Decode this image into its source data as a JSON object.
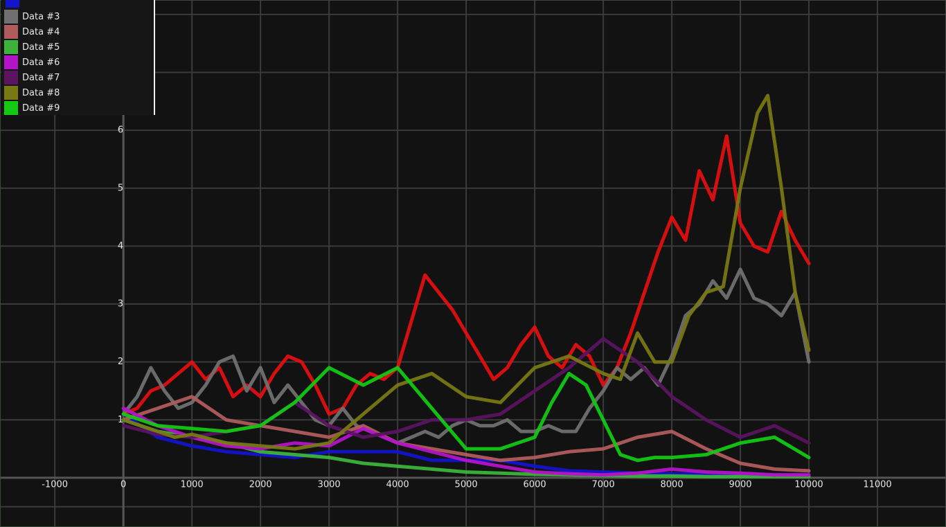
{
  "chart_data": {
    "type": "line",
    "title": "",
    "xlabel": "",
    "ylabel": "",
    "xlim": [
      -1800,
      12000
    ],
    "ylim": [
      -0.85,
      8.25
    ],
    "x_ticks": [
      -1000,
      0,
      1000,
      2000,
      3000,
      4000,
      5000,
      6000,
      7000,
      8000,
      9000,
      10000,
      11000
    ],
    "x_tick_labels": [
      "-1000",
      "0",
      "1000",
      "2000",
      "3000",
      "4000",
      "5000",
      "6000",
      "7000",
      "8000",
      "9000",
      "10000",
      "11000"
    ],
    "y_ticks": [
      1,
      2,
      3,
      4,
      5,
      6
    ],
    "y_tick_labels": [
      "1",
      "2",
      "3",
      "4",
      "5",
      "6"
    ],
    "grid": true,
    "legend_position": "top-left",
    "background_color": "#121212",
    "grid_color": "#3a3a3a",
    "axis_color": "#555555",
    "legend_top_swatch_color": "#1414cc",
    "series": [
      {
        "name": "",
        "color": "#1414cc",
        "x": [
          0,
          500,
          1000,
          1500,
          2000,
          2500,
          3000,
          3500,
          4000,
          4500,
          5000,
          5500,
          6000,
          6500,
          7000,
          7500,
          8000,
          8500,
          9000,
          9500,
          10000
        ],
        "y": [
          1.1,
          0.7,
          0.55,
          0.45,
          0.4,
          0.35,
          0.45,
          0.45,
          0.45,
          0.3,
          0.3,
          0.3,
          0.2,
          0.12,
          0.1,
          0.08,
          0.07,
          0.06,
          0.05,
          0.05,
          0.05
        ]
      },
      {
        "name": "",
        "color": "#e01010",
        "x": [
          0,
          200,
          400,
          600,
          800,
          1000,
          1200,
          1400,
          1600,
          1800,
          2000,
          2200,
          2400,
          2600,
          2800,
          3000,
          3200,
          3400,
          3600,
          3800,
          4000,
          4200,
          4400,
          4600,
          4800,
          5000,
          5200,
          5400,
          5600,
          5800,
          6000,
          6200,
          6400,
          6600,
          6800,
          7000,
          7200,
          7400,
          7600,
          7800,
          8000,
          8200,
          8400,
          8600,
          8800,
          9000,
          9200,
          9400,
          9600,
          9800,
          10000
        ],
        "y": [
          1.1,
          1.2,
          1.5,
          1.6,
          1.8,
          2.0,
          1.7,
          1.9,
          1.4,
          1.6,
          1.4,
          1.8,
          2.1,
          2.0,
          1.6,
          1.1,
          1.2,
          1.6,
          1.8,
          1.7,
          1.9,
          2.7,
          3.5,
          3.2,
          2.9,
          2.5,
          2.1,
          1.7,
          1.9,
          2.3,
          2.6,
          2.1,
          1.9,
          2.3,
          2.1,
          1.6,
          1.9,
          2.5,
          3.2,
          3.9,
          4.5,
          4.1,
          5.3,
          4.8,
          5.9,
          4.4,
          4.0,
          3.9,
          4.6,
          4.1,
          3.7
        ]
      },
      {
        "name": "Data #3",
        "color": "#707070",
        "x": [
          0,
          200,
          400,
          600,
          800,
          1000,
          1200,
          1400,
          1600,
          1800,
          2000,
          2200,
          2400,
          2600,
          2800,
          3000,
          3200,
          3400,
          3600,
          3800,
          4000,
          4200,
          4400,
          4600,
          4800,
          5000,
          5200,
          5400,
          5600,
          5800,
          6000,
          6200,
          6400,
          6600,
          6800,
          7000,
          7200,
          7400,
          7600,
          7800,
          8000,
          8200,
          8400,
          8600,
          8800,
          9000,
          9200,
          9400,
          9600,
          9800,
          10000
        ],
        "y": [
          1.1,
          1.4,
          1.9,
          1.5,
          1.2,
          1.3,
          1.6,
          2.0,
          2.1,
          1.5,
          1.9,
          1.3,
          1.6,
          1.3,
          1.0,
          0.9,
          1.2,
          0.9,
          0.8,
          0.7,
          0.6,
          0.7,
          0.8,
          0.7,
          0.9,
          1.0,
          0.9,
          0.9,
          1.0,
          0.8,
          0.8,
          0.9,
          0.8,
          0.8,
          1.2,
          1.5,
          1.9,
          1.7,
          1.9,
          1.6,
          2.1,
          2.8,
          3.0,
          3.4,
          3.1,
          3.6,
          3.1,
          3.0,
          2.8,
          3.2,
          2.0
        ]
      },
      {
        "name": "Data #4",
        "color": "#b05c5c",
        "x": [
          0,
          500,
          1000,
          1500,
          2000,
          2500,
          3000,
          3500,
          4000,
          4500,
          5000,
          5500,
          6000,
          6500,
          7000,
          7500,
          8000,
          8500,
          9000,
          9500,
          10000
        ],
        "y": [
          1.0,
          1.2,
          1.4,
          1.0,
          0.9,
          0.8,
          0.7,
          0.9,
          0.6,
          0.5,
          0.4,
          0.3,
          0.35,
          0.45,
          0.5,
          0.7,
          0.8,
          0.5,
          0.25,
          0.15,
          0.12
        ]
      },
      {
        "name": "Data #5",
        "color": "#3cb43c",
        "x": [
          0,
          500,
          1000,
          1500,
          2000,
          2500,
          3000,
          3500,
          4000,
          4500,
          5000,
          5500,
          6000,
          6500,
          7000,
          7500,
          8000,
          8500,
          9000,
          9500,
          10000
        ],
        "y": [
          1.0,
          0.8,
          0.7,
          0.6,
          0.45,
          0.4,
          0.35,
          0.25,
          0.2,
          0.15,
          0.1,
          0.08,
          0.06,
          0.05,
          0.04,
          0.03,
          0.03,
          0.02,
          0.02,
          0.02,
          0.02
        ]
      },
      {
        "name": "Data #6",
        "color": "#b414c8",
        "x": [
          0,
          500,
          1000,
          1500,
          2000,
          2500,
          3000,
          3500,
          4000,
          4500,
          5000,
          5500,
          6000,
          6500,
          7000,
          7500,
          8000,
          8500,
          9000,
          9500,
          10000
        ],
        "y": [
          1.2,
          0.9,
          0.7,
          0.55,
          0.5,
          0.6,
          0.55,
          0.85,
          0.6,
          0.45,
          0.3,
          0.2,
          0.1,
          0.07,
          0.05,
          0.08,
          0.15,
          0.1,
          0.08,
          0.05,
          0.05
        ]
      },
      {
        "name": "Data #7",
        "color": "#5a1460",
        "x": [
          0,
          500,
          1000,
          1500,
          2000,
          2500,
          3000,
          3500,
          4000,
          4500,
          5000,
          5500,
          6000,
          6500,
          7000,
          7500,
          8000,
          8500,
          9000,
          9500,
          10000
        ],
        "y": [
          0.9,
          0.75,
          0.7,
          0.8,
          0.9,
          1.3,
          0.9,
          0.7,
          0.8,
          1.0,
          1.0,
          1.1,
          1.5,
          1.9,
          2.4,
          2.0,
          1.4,
          1.0,
          0.7,
          0.9,
          0.6
        ]
      },
      {
        "name": "Data #8",
        "color": "#787814",
        "x": [
          0,
          250,
          500,
          750,
          1000,
          1500,
          2000,
          2500,
          3000,
          3500,
          4000,
          4500,
          5000,
          5500,
          6000,
          6500,
          7000,
          7250,
          7500,
          7750,
          8000,
          8250,
          8500,
          8750,
          9000,
          9250,
          9400,
          9600,
          9800,
          10000
        ],
        "y": [
          1.0,
          0.9,
          0.8,
          0.7,
          0.75,
          0.6,
          0.55,
          0.5,
          0.6,
          1.1,
          1.6,
          1.8,
          1.4,
          1.3,
          1.9,
          2.1,
          1.8,
          1.7,
          2.5,
          2.0,
          2.0,
          2.8,
          3.2,
          3.3,
          5.0,
          6.3,
          6.6,
          5.0,
          3.2,
          2.2
        ]
      },
      {
        "name": "Data #9",
        "color": "#14c814",
        "x": [
          0,
          500,
          1000,
          1500,
          2000,
          2500,
          3000,
          3500,
          4000,
          4500,
          5000,
          5500,
          6000,
          6250,
          6500,
          6750,
          7000,
          7250,
          7500,
          7750,
          8000,
          8500,
          9000,
          9500,
          10000
        ],
        "y": [
          1.1,
          0.9,
          0.85,
          0.8,
          0.9,
          1.3,
          1.9,
          1.6,
          1.9,
          1.2,
          0.5,
          0.5,
          0.7,
          1.3,
          1.8,
          1.6,
          1.0,
          0.4,
          0.3,
          0.35,
          0.35,
          0.4,
          0.6,
          0.7,
          0.35
        ]
      }
    ]
  }
}
